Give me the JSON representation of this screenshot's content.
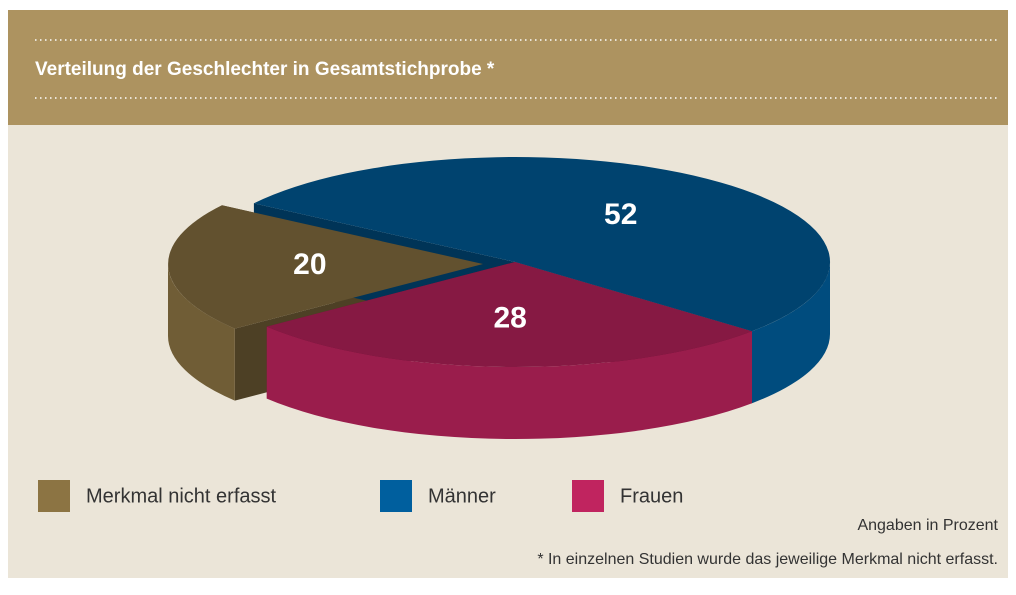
{
  "chart_data": {
    "type": "pie3d",
    "title": "Verteilung der Geschlechter in Gesamtstichprobe *",
    "categories": [
      "Merkmal nicht erfasst",
      "Männer",
      "Frauen"
    ],
    "values": [
      20,
      52,
      28
    ],
    "colors": [
      "#8c7443",
      "#005f9e",
      "#c0245f"
    ],
    "notes": [
      "Angaben in Prozent",
      "* In einzelnen Studien wurde das jeweilige Merkmal nicht erfasst."
    ]
  }
}
